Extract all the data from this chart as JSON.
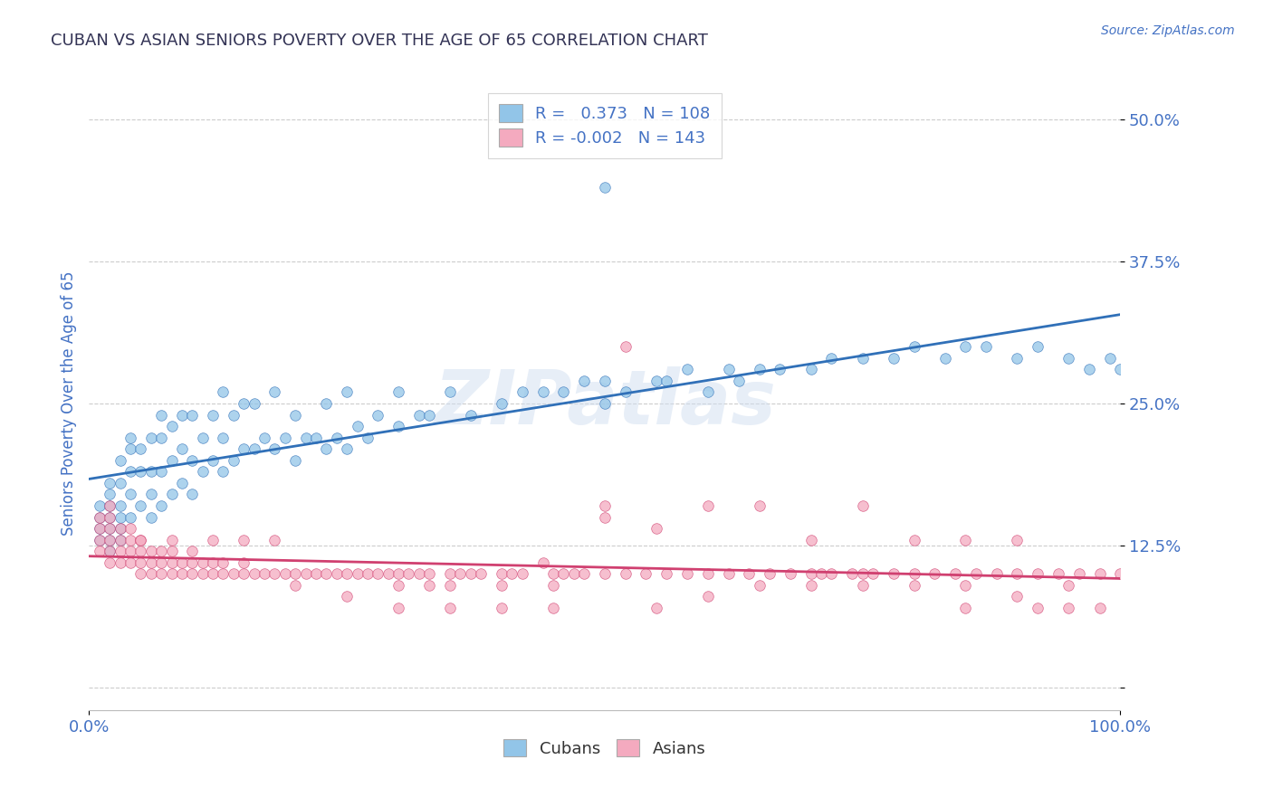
{
  "title": "CUBAN VS ASIAN SENIORS POVERTY OVER THE AGE OF 65 CORRELATION CHART",
  "source_text": "Source: ZipAtlas.com",
  "ylabel": "Seniors Poverty Over the Age of 65",
  "xlim": [
    0.0,
    1.0
  ],
  "ylim": [
    -0.02,
    0.52
  ],
  "yticks": [
    0.0,
    0.125,
    0.25,
    0.375,
    0.5
  ],
  "ytick_labels": [
    "",
    "12.5%",
    "25.0%",
    "37.5%",
    "50.0%"
  ],
  "xticks": [
    0.0,
    1.0
  ],
  "xtick_labels": [
    "0.0%",
    "100.0%"
  ],
  "cuban_color": "#92C5E8",
  "asian_color": "#F4AABF",
  "cuban_line_color": "#3070B8",
  "asian_line_color": "#D04070",
  "cuban_R": 0.373,
  "cuban_N": 108,
  "asian_R": -0.002,
  "asian_N": 143,
  "watermark": "ZIPatlas",
  "background_color": "#FFFFFF",
  "grid_color": "#CCCCCC",
  "title_color": "#333355",
  "axis_label_color": "#4472C4",
  "legend_r_color": "#4472C4",
  "cuban_scatter_x": [
    0.01,
    0.01,
    0.01,
    0.01,
    0.02,
    0.02,
    0.02,
    0.02,
    0.02,
    0.02,
    0.02,
    0.03,
    0.03,
    0.03,
    0.03,
    0.03,
    0.03,
    0.04,
    0.04,
    0.04,
    0.04,
    0.04,
    0.05,
    0.05,
    0.05,
    0.06,
    0.06,
    0.06,
    0.06,
    0.07,
    0.07,
    0.07,
    0.07,
    0.08,
    0.08,
    0.08,
    0.09,
    0.09,
    0.09,
    0.1,
    0.1,
    0.1,
    0.11,
    0.11,
    0.12,
    0.12,
    0.13,
    0.13,
    0.13,
    0.14,
    0.14,
    0.15,
    0.15,
    0.16,
    0.16,
    0.17,
    0.18,
    0.18,
    0.19,
    0.2,
    0.2,
    0.21,
    0.22,
    0.23,
    0.23,
    0.24,
    0.25,
    0.25,
    0.26,
    0.27,
    0.28,
    0.3,
    0.3,
    0.32,
    0.33,
    0.35,
    0.37,
    0.4,
    0.42,
    0.44,
    0.46,
    0.48,
    0.5,
    0.5,
    0.52,
    0.55,
    0.56,
    0.58,
    0.6,
    0.62,
    0.63,
    0.65,
    0.67,
    0.7,
    0.72,
    0.75,
    0.78,
    0.8,
    0.83,
    0.85,
    0.87,
    0.9,
    0.92,
    0.95,
    0.97,
    0.99,
    1.0,
    0.5
  ],
  "cuban_scatter_y": [
    0.13,
    0.14,
    0.15,
    0.16,
    0.12,
    0.13,
    0.14,
    0.15,
    0.16,
    0.17,
    0.18,
    0.13,
    0.14,
    0.15,
    0.16,
    0.18,
    0.2,
    0.15,
    0.17,
    0.19,
    0.21,
    0.22,
    0.16,
    0.19,
    0.21,
    0.15,
    0.17,
    0.19,
    0.22,
    0.16,
    0.19,
    0.22,
    0.24,
    0.17,
    0.2,
    0.23,
    0.18,
    0.21,
    0.24,
    0.17,
    0.2,
    0.24,
    0.19,
    0.22,
    0.2,
    0.24,
    0.19,
    0.22,
    0.26,
    0.2,
    0.24,
    0.21,
    0.25,
    0.21,
    0.25,
    0.22,
    0.21,
    0.26,
    0.22,
    0.2,
    0.24,
    0.22,
    0.22,
    0.21,
    0.25,
    0.22,
    0.21,
    0.26,
    0.23,
    0.22,
    0.24,
    0.23,
    0.26,
    0.24,
    0.24,
    0.26,
    0.24,
    0.25,
    0.26,
    0.26,
    0.26,
    0.27,
    0.25,
    0.27,
    0.26,
    0.27,
    0.27,
    0.28,
    0.26,
    0.28,
    0.27,
    0.28,
    0.28,
    0.28,
    0.29,
    0.29,
    0.29,
    0.3,
    0.29,
    0.3,
    0.3,
    0.29,
    0.3,
    0.29,
    0.28,
    0.29,
    0.28,
    0.44
  ],
  "asian_scatter_x": [
    0.01,
    0.01,
    0.01,
    0.01,
    0.02,
    0.02,
    0.02,
    0.02,
    0.02,
    0.02,
    0.03,
    0.03,
    0.03,
    0.03,
    0.04,
    0.04,
    0.04,
    0.04,
    0.05,
    0.05,
    0.05,
    0.05,
    0.06,
    0.06,
    0.06,
    0.07,
    0.07,
    0.07,
    0.08,
    0.08,
    0.08,
    0.09,
    0.09,
    0.1,
    0.1,
    0.1,
    0.11,
    0.11,
    0.12,
    0.12,
    0.13,
    0.13,
    0.14,
    0.15,
    0.15,
    0.16,
    0.17,
    0.18,
    0.19,
    0.2,
    0.21,
    0.22,
    0.23,
    0.24,
    0.25,
    0.26,
    0.27,
    0.28,
    0.29,
    0.3,
    0.31,
    0.32,
    0.33,
    0.35,
    0.36,
    0.37,
    0.38,
    0.4,
    0.41,
    0.42,
    0.44,
    0.45,
    0.46,
    0.47,
    0.48,
    0.5,
    0.52,
    0.54,
    0.56,
    0.58,
    0.6,
    0.62,
    0.64,
    0.66,
    0.68,
    0.7,
    0.71,
    0.72,
    0.74,
    0.75,
    0.76,
    0.78,
    0.8,
    0.82,
    0.84,
    0.86,
    0.88,
    0.9,
    0.92,
    0.94,
    0.96,
    0.98,
    1.0,
    0.33,
    0.5,
    0.55,
    0.6,
    0.65,
    0.7,
    0.75,
    0.8,
    0.85,
    0.9,
    0.95,
    0.2,
    0.25,
    0.3,
    0.35,
    0.4,
    0.45,
    0.05,
    0.08,
    0.12,
    0.15,
    0.18,
    0.5,
    0.6,
    0.65,
    0.7,
    0.75,
    0.8,
    0.85,
    0.9,
    0.3,
    0.35,
    0.4,
    0.45,
    0.55,
    0.85,
    0.92,
    0.95,
    0.98,
    0.52
  ],
  "asian_scatter_y": [
    0.12,
    0.13,
    0.14,
    0.15,
    0.11,
    0.12,
    0.13,
    0.14,
    0.15,
    0.16,
    0.11,
    0.12,
    0.13,
    0.14,
    0.11,
    0.12,
    0.13,
    0.14,
    0.1,
    0.11,
    0.12,
    0.13,
    0.1,
    0.11,
    0.12,
    0.1,
    0.11,
    0.12,
    0.1,
    0.11,
    0.12,
    0.1,
    0.11,
    0.1,
    0.11,
    0.12,
    0.1,
    0.11,
    0.1,
    0.11,
    0.1,
    0.11,
    0.1,
    0.1,
    0.11,
    0.1,
    0.1,
    0.1,
    0.1,
    0.1,
    0.1,
    0.1,
    0.1,
    0.1,
    0.1,
    0.1,
    0.1,
    0.1,
    0.1,
    0.1,
    0.1,
    0.1,
    0.1,
    0.1,
    0.1,
    0.1,
    0.1,
    0.1,
    0.1,
    0.1,
    0.11,
    0.1,
    0.1,
    0.1,
    0.1,
    0.1,
    0.1,
    0.1,
    0.1,
    0.1,
    0.1,
    0.1,
    0.1,
    0.1,
    0.1,
    0.1,
    0.1,
    0.1,
    0.1,
    0.1,
    0.1,
    0.1,
    0.1,
    0.1,
    0.1,
    0.1,
    0.1,
    0.1,
    0.1,
    0.1,
    0.1,
    0.1,
    0.1,
    0.09,
    0.15,
    0.14,
    0.08,
    0.09,
    0.09,
    0.09,
    0.09,
    0.09,
    0.08,
    0.09,
    0.09,
    0.08,
    0.09,
    0.09,
    0.09,
    0.09,
    0.13,
    0.13,
    0.13,
    0.13,
    0.13,
    0.16,
    0.16,
    0.16,
    0.13,
    0.16,
    0.13,
    0.13,
    0.13,
    0.07,
    0.07,
    0.07,
    0.07,
    0.07,
    0.07,
    0.07,
    0.07,
    0.07,
    0.3
  ]
}
